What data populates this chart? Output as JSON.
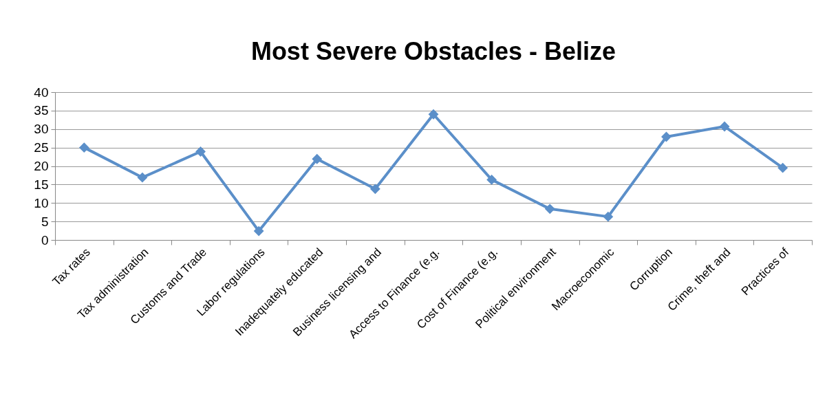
{
  "chart_data": {
    "type": "line",
    "title": "Most Severe Obstacles - Belize",
    "categories": [
      "Tax rates",
      "Tax administration",
      "Customs and Trade",
      "Labor regulations",
      "Inadequately educated",
      "Business licensing and",
      "Access to Finance (e.g.",
      "Cost of Finance (e.g.",
      "Political environment",
      "Macroeconomic",
      "Corruption",
      "Crime, theft and",
      "Practices of"
    ],
    "series": [
      {
        "color": "#5b8fc9",
        "values": [
          25,
          16.9,
          23.9,
          2.4,
          21.9,
          13.8,
          34,
          16.3,
          8.4,
          6.3,
          27.9,
          30.7,
          19.5
        ]
      }
    ],
    "ylim": [
      0,
      40
    ],
    "yticks": [
      0,
      5,
      10,
      15,
      20,
      25,
      30,
      35,
      40
    ],
    "grid": "y",
    "marker": "diamond",
    "line_style": "solid"
  }
}
